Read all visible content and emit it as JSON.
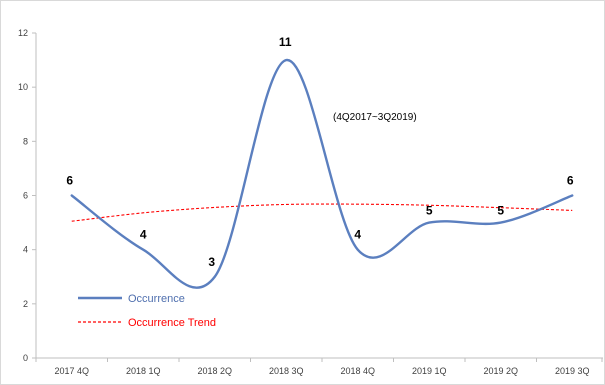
{
  "chart_data": {
    "type": "line",
    "categories": [
      "2017 4Q",
      "2018 1Q",
      "2018 2Q",
      "2018 3Q",
      "2018 4Q",
      "2019 1Q",
      "2019 2Q",
      "2019 3Q"
    ],
    "series": [
      {
        "name": "Occurrence",
        "values": [
          6,
          4,
          3,
          11,
          4,
          5,
          5,
          6
        ],
        "color": "#5b7fbf",
        "style": "smooth-solid"
      },
      {
        "name": "Occurrence Trend",
        "values": [
          5.05,
          5.36,
          5.56,
          5.67,
          5.68,
          5.64,
          5.55,
          5.45
        ],
        "color": "#ff0000",
        "style": "dashed"
      }
    ],
    "data_labels": [
      "6",
      "4",
      "3",
      "11",
      "4",
      "5",
      "5",
      "6"
    ],
    "annotation": "(4Q2017~3Q2019)",
    "ylim": [
      0,
      12
    ],
    "yticks": [
      0,
      2,
      4,
      6,
      8,
      10,
      12
    ],
    "grid": false,
    "legend_position": "bottom-left"
  }
}
